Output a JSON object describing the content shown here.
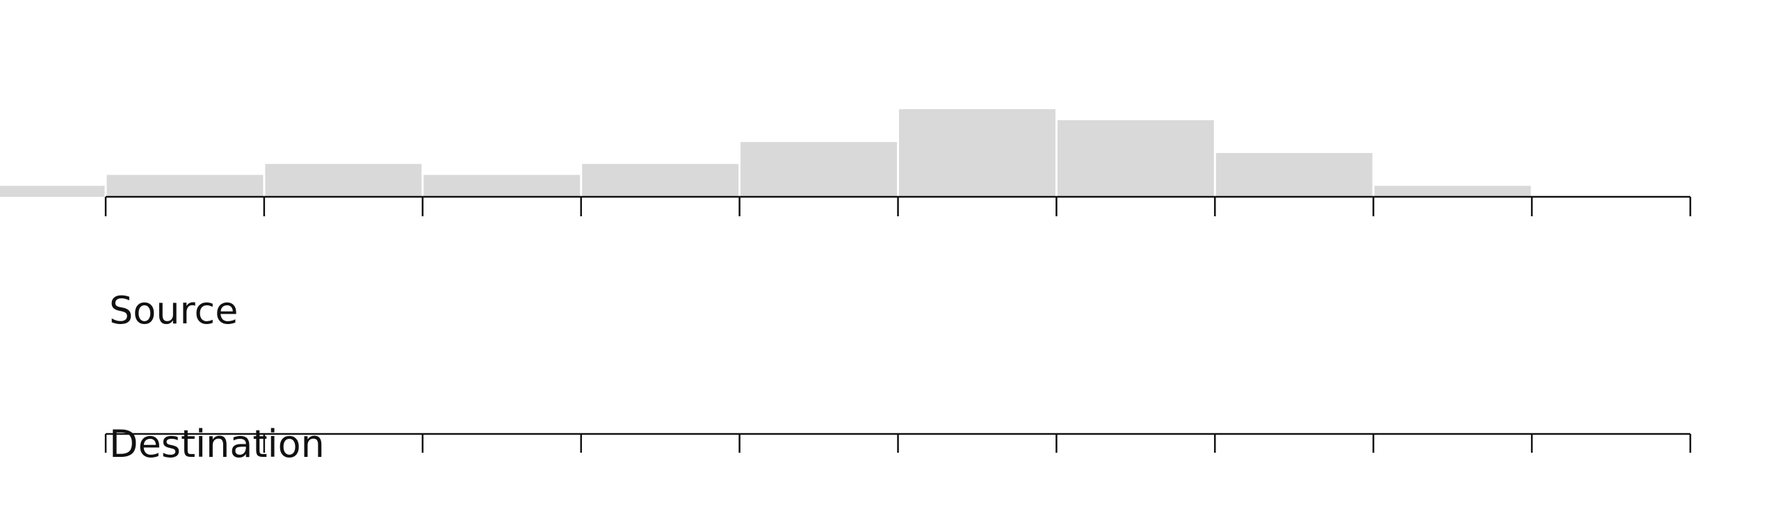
{
  "chart_data": {
    "type": "histogram",
    "bins": [
      -1,
      0,
      1,
      2,
      3,
      4,
      5,
      6,
      7,
      8,
      9,
      10
    ],
    "values": [
      1,
      2,
      3,
      2,
      3,
      5,
      8,
      7,
      4,
      1,
      0
    ],
    "color": "#d9d9d9",
    "xlim": [
      0,
      10
    ],
    "xticks": [
      0,
      1,
      2,
      3,
      4,
      5,
      6,
      7,
      8,
      9,
      10
    ],
    "ylim": [
      0,
      8
    ]
  },
  "labels": {
    "source": "Source",
    "destination": "Destination"
  }
}
